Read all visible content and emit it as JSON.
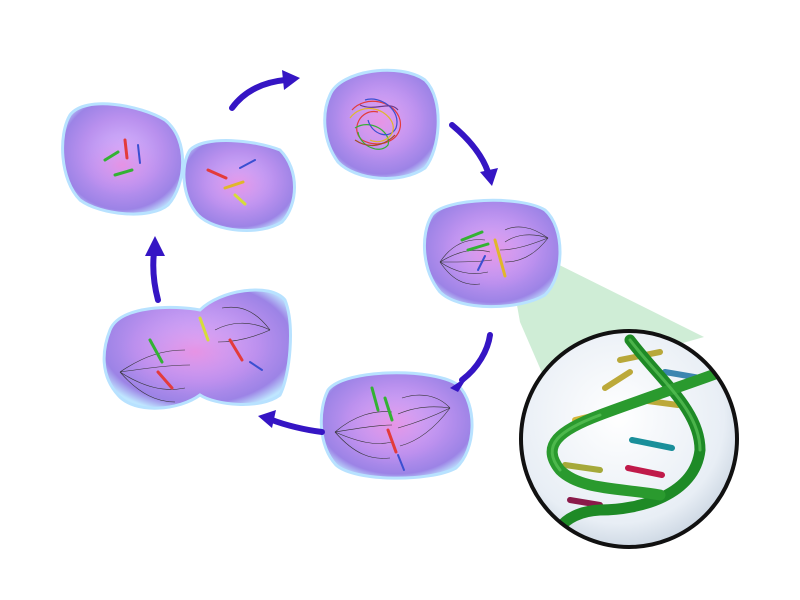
{
  "diagram": {
    "stages": [
      {
        "id": "daughter-cells",
        "kind": "pair"
      },
      {
        "id": "interphase",
        "kind": "tangle"
      },
      {
        "id": "prophase",
        "kind": "spindle"
      },
      {
        "id": "metaphase",
        "kind": "spindle"
      },
      {
        "id": "anaphase",
        "kind": "dividing"
      }
    ],
    "arrows": 5,
    "zoom_inset": {
      "subject": "dna-double-helix"
    },
    "colors": {
      "cell_fill": "#b78ce8",
      "cell_glow": "#cfe8ff",
      "nucleus_pink": "#e27bd6",
      "arrow": "#3515c4",
      "inset_band": "#a9ddb6",
      "helix": "#1e8a26"
    }
  }
}
